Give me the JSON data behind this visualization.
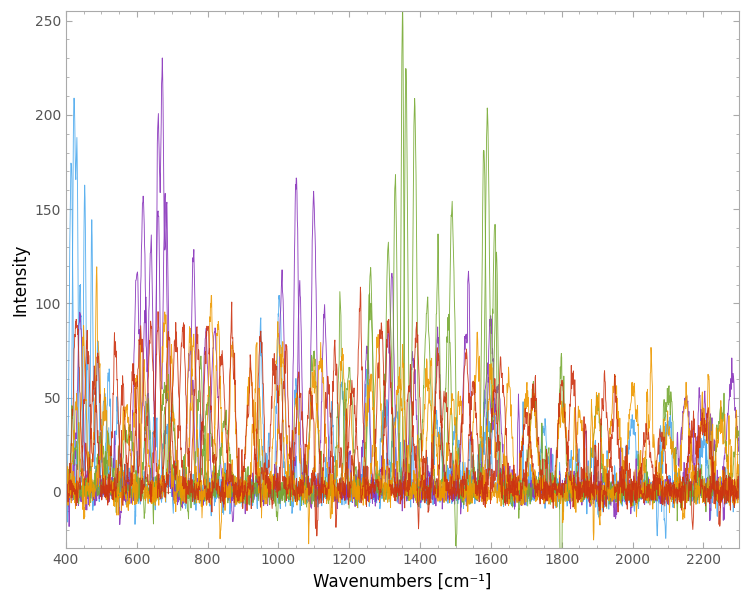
{
  "x_min": 400,
  "x_max": 2300,
  "y_min": -30,
  "y_max": 255,
  "xlabel": "Wavenumbers [cm⁻¹]",
  "ylabel": "Intensity",
  "xticks": [
    400,
    600,
    800,
    1000,
    1200,
    1400,
    1600,
    1800,
    2000,
    2200
  ],
  "yticks": [
    0,
    50,
    100,
    150,
    200,
    250
  ],
  "colors": {
    "blue": "#4DAAEE",
    "purple": "#8833BB",
    "green": "#77AA33",
    "orange": "#EE9900",
    "red": "#CC3311"
  },
  "line_width": 0.65,
  "background_color": "#ffffff",
  "figsize": [
    7.5,
    6.02
  ],
  "dpi": 100,
  "spine_color": "#aaaaaa",
  "tick_color": "#555555",
  "zero_line_color": "#999999",
  "xlabel_fontsize": 12,
  "ylabel_fontsize": 12,
  "tick_fontsize": 10,
  "n_points": 1900
}
